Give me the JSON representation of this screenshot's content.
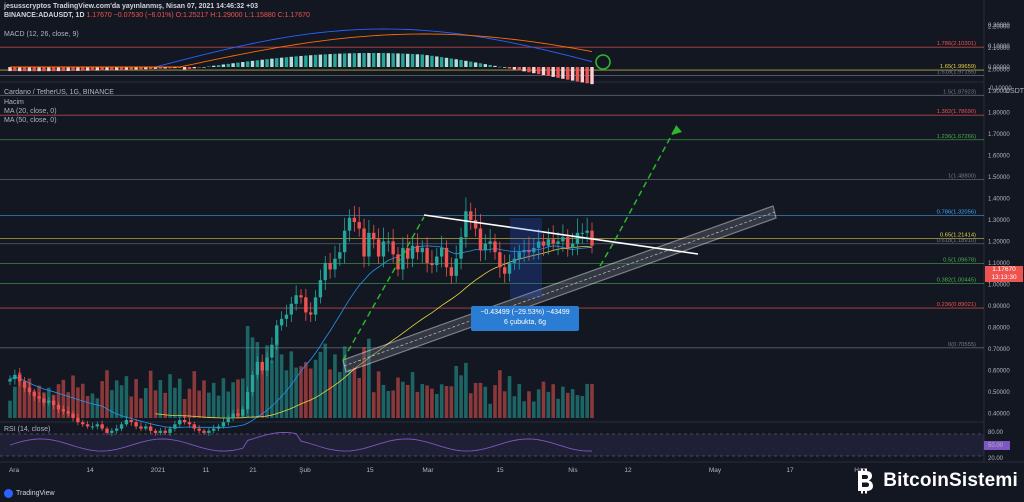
{
  "header": {
    "line1": "jesusscryptos TradingView.com'da yayınlanmış, Nisan 07, 2021 14:46:32 +03",
    "symbol": "BINANCE:ADAUSDT, 1D",
    "ohlc": "1.17670 −0.07530 (−6.01%) O:1.25217 H:1.29000 L:1.15880 C:1.17670"
  },
  "macd": {
    "label": "MACD (12, 26, close, 9)",
    "ticks": [
      "0.20000",
      "0.10000",
      "0.00000",
      "-0.10000"
    ]
  },
  "main": {
    "title": "Cardano / TetherUS, 1G, BINANCE",
    "indicators": [
      "Hacim",
      "MA (20, close, 0)",
      "MA (50, close, 0)"
    ],
    "currency": "USDT",
    "price_tag": [
      "1.17670",
      "13:13:30"
    ],
    "measure": [
      "−0.43499 (−29.53%) −43499",
      "6 çubukta, 6g"
    ]
  },
  "rsi": {
    "label": "RSI (14, close)",
    "ticks": [
      "80.00",
      "50.00",
      "20.00"
    ]
  },
  "x_axis": [
    "Ara",
    "14",
    "2021",
    "11",
    "21",
    "Şub",
    "15",
    "Mar",
    "15",
    "Nis",
    "12",
    "May",
    "17",
    "Haz"
  ],
  "brand": {
    "name": "BitcoinSistemi",
    "tv": "TradingView"
  },
  "colors": {
    "bg": "#131722",
    "up": "#26a69a",
    "down": "#ef5350",
    "ma20": "#2196f3",
    "ma50": "#e8d540",
    "projection": "#2db52d"
  },
  "chart_data": {
    "type": "candlestick",
    "y_axis_ticks": [
      "2.20000",
      "2.10000",
      "2.00000",
      "1.90000",
      "1.80000",
      "1.70000",
      "1.60000",
      "1.50000",
      "1.40000",
      "1.30000",
      "1.20000",
      "1.10000",
      "1.00000",
      "0.90000",
      "0.80000",
      "0.70000",
      "0.60000",
      "0.50000",
      "0.40000"
    ],
    "ylim": [
      0.37,
      2.22
    ],
    "fib_levels": [
      {
        "label": "1.786(2.10301)",
        "value": 2.10301,
        "color": "#ef5350"
      },
      {
        "label": "1.65(1.99659)",
        "value": 1.99659,
        "color": "#e8d540"
      },
      {
        "label": "1.618(1.97155)",
        "value": 1.97155,
        "color": "#787b86"
      },
      {
        "label": "1.5(1.87923)",
        "value": 1.87923,
        "color": "#787b86"
      },
      {
        "label": "1.382(1.78690)",
        "value": 1.7869,
        "color": "#ef5350"
      },
      {
        "label": "1.236(1.67266)",
        "value": 1.67266,
        "color": "#4caf50"
      },
      {
        "label": "1(1.48800)",
        "value": 1.488,
        "color": "#787b86"
      },
      {
        "label": "0.786(1.32056)",
        "value": 1.32056,
        "color": "#42a5f5"
      },
      {
        "label": "0.65(1.21414)",
        "value": 1.21414,
        "color": "#e8d540"
      },
      {
        "label": "0.618(1.18910)",
        "value": 1.1891,
        "color": "#787b86"
      },
      {
        "label": "0.5(1.09678)",
        "value": 1.09678,
        "color": "#4caf50"
      },
      {
        "label": "0.382(1.00445)",
        "value": 1.00445,
        "color": "#4caf50"
      },
      {
        "label": "0.236(0.89021)",
        "value": 0.89021,
        "color": "#ef5350"
      },
      {
        "label": "0(0.70555)",
        "value": 0.70555,
        "color": "#787b86"
      }
    ],
    "closes": [
      0.56,
      0.58,
      0.55,
      0.52,
      0.5,
      0.48,
      0.47,
      0.45,
      0.46,
      0.44,
      0.42,
      0.41,
      0.4,
      0.38,
      0.36,
      0.35,
      0.34,
      0.34,
      0.35,
      0.33,
      0.31,
      0.32,
      0.33,
      0.35,
      0.37,
      0.36,
      0.34,
      0.33,
      0.34,
      0.32,
      0.31,
      0.32,
      0.31,
      0.33,
      0.35,
      0.37,
      0.36,
      0.35,
      0.33,
      0.32,
      0.31,
      0.32,
      0.33,
      0.34,
      0.36,
      0.38,
      0.4,
      0.39,
      0.42,
      0.5,
      0.58,
      0.64,
      0.6,
      0.66,
      0.72,
      0.81,
      0.84,
      0.86,
      0.91,
      0.95,
      0.94,
      0.87,
      0.86,
      0.94,
      1.02,
      1.1,
      1.07,
      1.12,
      1.15,
      1.25,
      1.31,
      1.29,
      1.26,
      1.13,
      1.24,
      1.21,
      1.13,
      1.2,
      1.2,
      1.14,
      1.07,
      1.17,
      1.12,
      1.18,
      1.15,
      1.17,
      1.1,
      1.09,
      1.13,
      1.17,
      1.08,
      1.04,
      1.12,
      1.22,
      1.34,
      1.3,
      1.26,
      1.16,
      1.19,
      1.2,
      1.15,
      1.08,
      1.05,
      1.1,
      1.12,
      1.15,
      1.16,
      1.15,
      1.17,
      1.2,
      1.18,
      1.21,
      1.19,
      1.2,
      1.22,
      1.17,
      1.19,
      1.24,
      1.24,
      1.25,
      1.18
    ]
  }
}
